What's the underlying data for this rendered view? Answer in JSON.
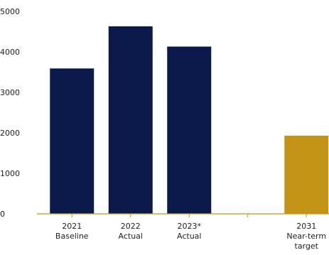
{
  "chart_data": {
    "type": "bar",
    "categories": [
      [
        "2021",
        "Baseline"
      ],
      [
        "2022",
        "Actual"
      ],
      [
        "2023*",
        "Actual"
      ],
      [
        "",
        ""
      ],
      [
        "2031",
        "Near-term",
        "target"
      ]
    ],
    "values": [
      3590,
      4630,
      4130,
      null,
      1930
    ],
    "colors": [
      "#0b1a4a",
      "#0b1a4a",
      "#0b1a4a",
      null,
      "#c49416"
    ],
    "y_ticks": [
      "0",
      "1000",
      "2000",
      "3000",
      "4000",
      "5000"
    ],
    "ylim": [
      0,
      5000
    ],
    "grid": false,
    "axis_color": "#c49416",
    "title": "",
    "xlabel": "",
    "ylabel": ""
  }
}
